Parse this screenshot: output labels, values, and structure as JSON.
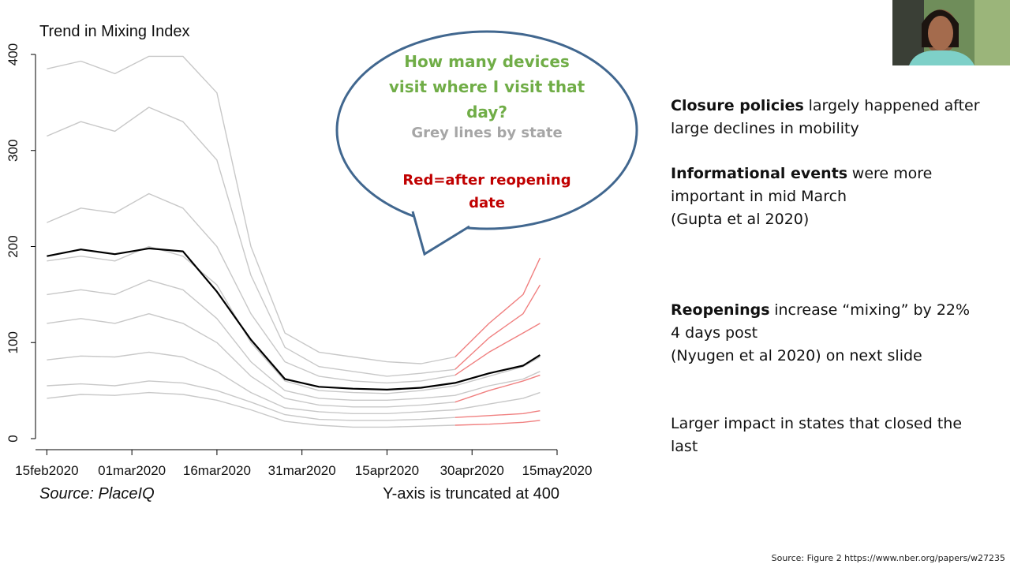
{
  "chart_data": {
    "type": "line",
    "title": "Trend in Mixing Index",
    "x": [
      "2020-02-15",
      "2020-02-21",
      "2020-02-27",
      "2020-03-04",
      "2020-03-10",
      "2020-03-16",
      "2020-03-22",
      "2020-03-28",
      "2020-04-03",
      "2020-04-09",
      "2020-04-15",
      "2020-04-21",
      "2020-04-27",
      "2020-05-03",
      "2020-05-09",
      "2020-05-12"
    ],
    "xlim": [
      "2020-02-13",
      "2020-05-15"
    ],
    "xticks": [
      {
        "value": "2020-02-15",
        "label": "15feb2020"
      },
      {
        "value": "2020-03-01",
        "label": "01mar2020"
      },
      {
        "value": "2020-03-16",
        "label": "16mar2020"
      },
      {
        "value": "2020-03-31",
        "label": "31mar2020"
      },
      {
        "value": "2020-04-15",
        "label": "15apr2020"
      },
      {
        "value": "2020-04-30",
        "label": "30apr2020"
      },
      {
        "value": "2020-05-15",
        "label": "15may2020"
      }
    ],
    "ylim": [
      0,
      400
    ],
    "yticks": [
      0,
      100,
      200,
      300,
      400
    ],
    "series": [
      {
        "color": "#c8c8c8",
        "values": [
          385,
          393,
          380,
          398,
          398,
          360,
          200,
          110,
          90,
          85,
          80,
          78,
          85,
          null,
          null,
          null
        ]
      },
      {
        "color": "#c8c8c8",
        "values": [
          315,
          330,
          320,
          345,
          330,
          290,
          170,
          95,
          75,
          70,
          65,
          68,
          72,
          null,
          null,
          null
        ]
      },
      {
        "color": "#c8c8c8",
        "values": [
          225,
          240,
          235,
          255,
          240,
          200,
          130,
          80,
          65,
          60,
          58,
          60,
          66,
          null,
          null,
          null
        ]
      },
      {
        "color": "#c8c8c8",
        "values": [
          185,
          190,
          185,
          200,
          190,
          160,
          100,
          60,
          50,
          48,
          47,
          50,
          55,
          65,
          75,
          85
        ]
      },
      {
        "color": "#c8c8c8",
        "values": [
          150,
          155,
          150,
          165,
          155,
          125,
          80,
          50,
          42,
          40,
          40,
          42,
          45,
          55,
          62,
          70
        ]
      },
      {
        "color": "#c8c8c8",
        "values": [
          120,
          125,
          120,
          130,
          120,
          100,
          65,
          42,
          35,
          33,
          33,
          35,
          38,
          null,
          null,
          null
        ]
      },
      {
        "color": "#c8c8c8",
        "values": [
          82,
          86,
          85,
          90,
          85,
          70,
          48,
          32,
          28,
          26,
          26,
          28,
          30,
          36,
          42,
          48
        ]
      },
      {
        "color": "#c8c8c8",
        "values": [
          55,
          57,
          55,
          60,
          58,
          50,
          38,
          25,
          20,
          19,
          19,
          20,
          22,
          null,
          null,
          null
        ]
      },
      {
        "color": "#c8c8c8",
        "values": [
          42,
          46,
          45,
          48,
          46,
          40,
          30,
          18,
          14,
          12,
          12,
          13,
          14,
          null,
          null,
          null
        ]
      },
      {
        "color": "#f08080",
        "values": [
          null,
          null,
          null,
          null,
          null,
          null,
          null,
          null,
          null,
          null,
          null,
          null,
          85,
          120,
          150,
          188
        ]
      },
      {
        "color": "#f08080",
        "values": [
          null,
          null,
          null,
          null,
          null,
          null,
          null,
          null,
          null,
          null,
          null,
          null,
          72,
          105,
          130,
          160
        ]
      },
      {
        "color": "#f08080",
        "values": [
          null,
          null,
          null,
          null,
          null,
          null,
          null,
          null,
          null,
          null,
          null,
          null,
          66,
          90,
          110,
          120
        ]
      },
      {
        "color": "#f08080",
        "values": [
          null,
          null,
          null,
          null,
          null,
          null,
          null,
          null,
          null,
          null,
          null,
          null,
          38,
          50,
          60,
          66
        ]
      },
      {
        "color": "#f08080",
        "values": [
          null,
          null,
          null,
          null,
          null,
          null,
          null,
          null,
          null,
          null,
          null,
          null,
          22,
          24,
          26,
          29
        ]
      },
      {
        "color": "#f08080",
        "values": [
          null,
          null,
          null,
          null,
          null,
          null,
          null,
          null,
          null,
          null,
          null,
          null,
          14,
          15,
          17,
          19
        ]
      },
      {
        "color": "#000000",
        "values": [
          190,
          197,
          192,
          198,
          195,
          153,
          103,
          62,
          54,
          52,
          51,
          53,
          58,
          68,
          76,
          87
        ]
      }
    ],
    "source": "Source: PlaceIQ",
    "note": "Y-axis is truncated at 400"
  },
  "bubble": {
    "question": "How many devices visit where I visit that day?",
    "grey_text": "Grey lines by state",
    "red_text": "Red=after reopening date"
  },
  "bullets": [
    {
      "lines": [
        {
          "bold": "Closure policies",
          "text": "largely happened after"
        },
        {
          "text": "large declines in mobility"
        }
      ]
    },
    {
      "lines": [
        {
          "bold": "Informational events",
          "text": "were more"
        },
        {
          "text": "important in mid March"
        },
        {
          "text": "(Gupta et al 2020)"
        }
      ]
    },
    {
      "lines": [
        {
          "bold": "Reopenings",
          "text": "increase “mixing” by 22%"
        },
        {
          "text": "4 days post"
        },
        {
          "text": "(Nyugen et al 2020) on next slide"
        }
      ]
    },
    {
      "lines": [
        {
          "text": "Larger impact in states that closed the"
        },
        {
          "text": "last"
        }
      ]
    }
  ],
  "footer": "Source: Figure 2 https://www.nber.org/papers/w27235"
}
